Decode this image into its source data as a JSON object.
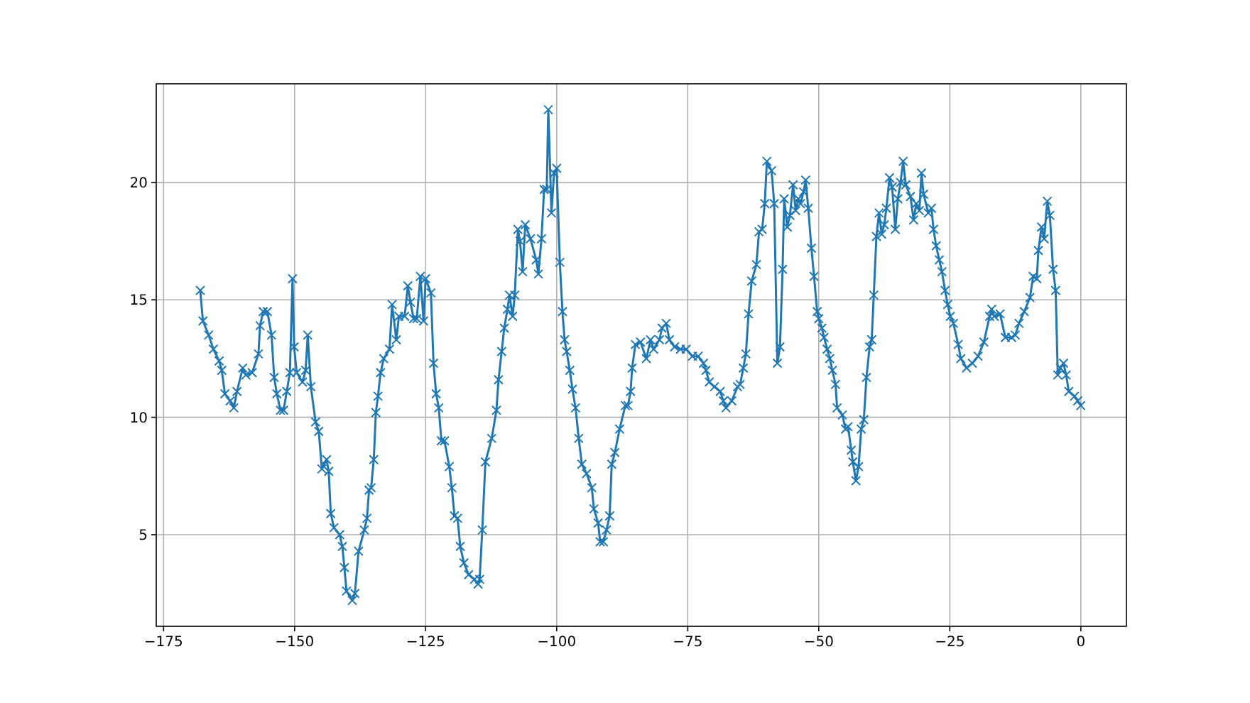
{
  "chart_data": {
    "type": "line",
    "marker": "cross",
    "line_style": "solid",
    "grid": true,
    "xlim": [
      -176.4,
      8.7
    ],
    "ylim": [
      1.1,
      24.2
    ],
    "xticks": [
      {
        "value": -175,
        "label": "−175"
      },
      {
        "value": -150,
        "label": "−150"
      },
      {
        "value": -125,
        "label": "−125"
      },
      {
        "value": -100,
        "label": "−100"
      },
      {
        "value": -75,
        "label": "−75"
      },
      {
        "value": -50,
        "label": "−50"
      },
      {
        "value": -25,
        "label": "−25"
      },
      0
    ],
    "yticks": [
      5,
      10,
      15,
      20
    ],
    "series": [
      {
        "color": "#1f77b4",
        "x": [
          -168.0,
          -167.5,
          -166.4,
          -165.5,
          -164.4,
          -163.9,
          -163.3,
          -162.3,
          -161.6,
          -161.0,
          -159.9,
          -159.3,
          -158.1,
          -156.9,
          -156.6,
          -156.0,
          -155.2,
          -154.4,
          -153.9,
          -153.4,
          -152.7,
          -152.1,
          -151.5,
          -150.9,
          -150.4,
          -150.1,
          -149.6,
          -148.5,
          -147.9,
          -147.5,
          -146.9,
          -146.0,
          -145.4,
          -144.8,
          -143.9,
          -143.5,
          -143.1,
          -142.5,
          -141.4,
          -140.9,
          -140.5,
          -140.1,
          -139.0,
          -138.5,
          -137.8,
          -136.7,
          -136.2,
          -135.8,
          -135.4,
          -134.9,
          -134.5,
          -134.1,
          -133.6,
          -133.0,
          -131.9,
          -131.4,
          -130.6,
          -130.1,
          -129.0,
          -128.4,
          -127.9,
          -127.3,
          -126.7,
          -126.0,
          -125.4,
          -125.0,
          -124.0,
          -123.5,
          -123.0,
          -122.5,
          -122.0,
          -121.4,
          -120.5,
          -120.0,
          -119.5,
          -118.9,
          -118.4,
          -117.7,
          -116.8,
          -115.7,
          -115.0,
          -114.7,
          -114.2,
          -113.6,
          -112.4,
          -111.5,
          -111.1,
          -110.5,
          -110.0,
          -109.4,
          -109.0,
          -108.4,
          -108.0,
          -107.4,
          -107.0,
          -106.5,
          -106.0,
          -105.0,
          -103.9,
          -103.5,
          -102.9,
          -102.4,
          -101.9,
          -101.6,
          -101.0,
          -100.5,
          -100.0,
          -99.4,
          -98.9,
          -98.5,
          -98.1,
          -97.5,
          -97.0,
          -96.4,
          -95.8,
          -95.2,
          -94.3,
          -93.3,
          -92.9,
          -92.1,
          -91.7,
          -91.1,
          -90.5,
          -89.9,
          -89.5,
          -88.9,
          -88.0,
          -86.9,
          -86.4,
          -85.9,
          -85.6,
          -85.0,
          -84.0,
          -82.9,
          -82.1,
          -81.5,
          -80.4,
          -79.9,
          -79.1,
          -78.5,
          -77.5,
          -76.4,
          -75.3,
          -74.1,
          -73.0,
          -72.0,
          -71.5,
          -70.9,
          -69.9,
          -68.8,
          -68.2,
          -67.7,
          -66.6,
          -65.5,
          -65.0,
          -64.4,
          -63.9,
          -63.4,
          -62.8,
          -61.9,
          -61.4,
          -60.8,
          -60.3,
          -59.9,
          -59.0,
          -58.5,
          -57.9,
          -57.4,
          -56.9,
          -56.6,
          -56.0,
          -55.5,
          -54.9,
          -54.4,
          -53.9,
          -53.5,
          -52.9,
          -52.5,
          -52.0,
          -51.4,
          -50.9,
          -50.3,
          -50.0,
          -49.4,
          -49.0,
          -48.4,
          -47.9,
          -47.4,
          -46.8,
          -46.5,
          -45.5,
          -44.9,
          -44.4,
          -43.8,
          -43.5,
          -42.9,
          -42.4,
          -41.9,
          -41.4,
          -40.9,
          -40.3,
          -39.9,
          -39.5,
          -39.0,
          -38.5,
          -38.0,
          -37.5,
          -37.1,
          -36.5,
          -36.0,
          -35.4,
          -34.9,
          -34.4,
          -33.9,
          -33.4,
          -32.5,
          -31.9,
          -31.4,
          -30.8,
          -30.4,
          -30.0,
          -29.1,
          -28.5,
          -28.1,
          -27.6,
          -27.0,
          -26.5,
          -25.9,
          -25.4,
          -24.9,
          -24.3,
          -23.4,
          -22.9,
          -21.8,
          -20.7,
          -19.6,
          -18.5,
          -17.4,
          -17.0,
          -16.5,
          -15.4,
          -14.4,
          -13.2,
          -12.5,
          -11.8,
          -10.8,
          -9.7,
          -9.1,
          -8.4,
          -8.1,
          -7.5,
          -7.0,
          -6.4,
          -5.9,
          -5.3,
          -4.8,
          -4.4,
          -3.9,
          -3.3,
          -2.8,
          -2.3,
          -1.2,
          -0.6,
          0
        ],
        "values": [
          15.4,
          14.1,
          13.5,
          12.9,
          12.4,
          12.0,
          11.0,
          10.7,
          10.4,
          11.1,
          12.1,
          11.8,
          11.9,
          12.7,
          13.9,
          14.5,
          14.5,
          13.5,
          11.7,
          11.0,
          10.3,
          10.3,
          11.1,
          11.9,
          15.9,
          13.0,
          11.9,
          11.5,
          12.0,
          13.5,
          11.3,
          9.8,
          9.4,
          7.8,
          8.2,
          7.7,
          5.9,
          5.3,
          5.0,
          4.5,
          3.6,
          2.6,
          2.2,
          2.5,
          4.3,
          5.2,
          5.7,
          6.9,
          7.0,
          8.2,
          10.2,
          10.9,
          11.9,
          12.5,
          12.9,
          14.8,
          13.3,
          14.3,
          14.3,
          15.6,
          14.9,
          14.2,
          14.2,
          16.0,
          14.1,
          15.9,
          15.3,
          12.3,
          11.0,
          10.4,
          9.0,
          9.0,
          7.9,
          7.0,
          5.8,
          5.7,
          4.5,
          3.8,
          3.3,
          3.1,
          2.9,
          3.1,
          5.2,
          8.1,
          9.1,
          10.3,
          11.6,
          12.8,
          13.8,
          14.6,
          15.2,
          14.3,
          15.2,
          18.0,
          17.5,
          16.2,
          18.2,
          17.6,
          16.7,
          16.1,
          17.6,
          19.7,
          19.7,
          23.1,
          18.7,
          20.4,
          20.6,
          16.6,
          14.5,
          13.3,
          12.8,
          12.0,
          11.2,
          10.4,
          9.1,
          8.0,
          7.6,
          7.0,
          6.1,
          5.5,
          4.7,
          4.7,
          5.2,
          5.8,
          8.0,
          8.5,
          9.5,
          10.5,
          10.5,
          11.1,
          12.1,
          13.1,
          13.2,
          12.5,
          13.3,
          12.9,
          13.3,
          13.8,
          14.0,
          13.3,
          13.0,
          12.9,
          12.9,
          12.6,
          12.6,
          12.3,
          12.0,
          11.5,
          11.3,
          11.1,
          10.7,
          10.4,
          10.7,
          11.3,
          11.4,
          12.1,
          12.7,
          14.4,
          15.8,
          16.5,
          17.9,
          18.0,
          19.1,
          20.9,
          20.5,
          19.1,
          12.3,
          13.0,
          16.3,
          19.3,
          18.1,
          18.6,
          19.9,
          18.8,
          19.3,
          19.1,
          19.6,
          20.1,
          18.9,
          17.2,
          16.0,
          14.5,
          14.2,
          13.8,
          13.4,
          12.9,
          12.5,
          12.0,
          11.4,
          10.4,
          10.1,
          9.5,
          9.6,
          8.6,
          8.1,
          7.3,
          7.9,
          9.5,
          9.9,
          11.7,
          13.0,
          13.3,
          15.2,
          17.7,
          18.7,
          17.8,
          18.2,
          18.9,
          20.2,
          19.8,
          18.0,
          19.3,
          20.0,
          20.9,
          19.9,
          19.4,
          18.4,
          19.1,
          18.8,
          20.4,
          19.5,
          18.7,
          18.9,
          18.0,
          17.3,
          16.7,
          16.2,
          15.4,
          14.8,
          14.3,
          14.0,
          13.1,
          12.5,
          12.1,
          12.3,
          12.6,
          13.2,
          14.3,
          14.6,
          14.3,
          14.4,
          13.4,
          13.4,
          13.5,
          14.0,
          14.5,
          15.1,
          16.0,
          15.9,
          17.1,
          18.1,
          17.6,
          19.2,
          18.6,
          16.3,
          15.4,
          11.8,
          12.1,
          12.3,
          11.8,
          11.1,
          10.9,
          10.7,
          10.5
        ]
      }
    ]
  }
}
